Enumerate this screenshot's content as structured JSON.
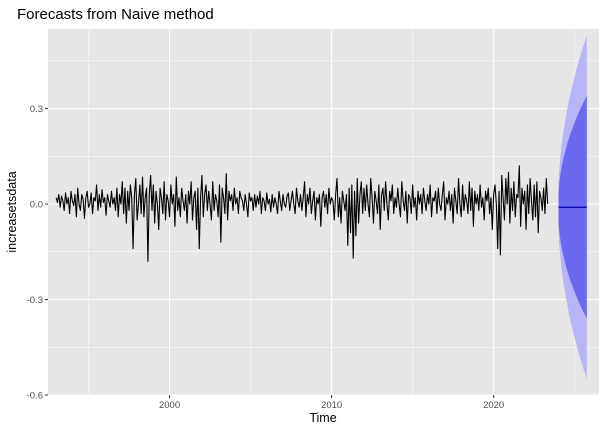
{
  "chart_data": {
    "type": "line",
    "title": "Forecasts from Naive method",
    "xlabel": "Time",
    "ylabel": "increasetsdata",
    "xlim": [
      1992.5,
      2026.5
    ],
    "ylim": [
      -0.6,
      0.55
    ],
    "x_ticks": [
      2000,
      2010,
      2020
    ],
    "x_tick_labels": [
      "2000",
      "2010",
      "2020"
    ],
    "y_ticks": [
      -0.6,
      -0.3,
      0.0,
      0.3
    ],
    "y_tick_labels": [
      "-0.6",
      "-0.3",
      "0.0",
      "0.3"
    ],
    "grid": true,
    "legend": "none",
    "colors": {
      "panel": "#e6e6e6",
      "grid_major": "#ffffff",
      "series": "#000000",
      "forecast_line": "#0000aa",
      "band_80": "#6b68f0",
      "band_95": "#b7b5f5"
    },
    "series": [
      {
        "start": 1993.0,
        "step": 0.08333,
        "values": [
          0.02,
          0.005,
          0.03,
          -0.01,
          0.025,
          0.01,
          -0.02,
          0.035,
          0.0,
          0.02,
          -0.03,
          0.04,
          0.01,
          -0.005,
          0.03,
          -0.04,
          0.05,
          0.0,
          -0.02,
          0.03,
          0.015,
          -0.045,
          0.02,
          0.04,
          -0.01,
          0.0,
          0.035,
          -0.03,
          0.02,
          0.01,
          0.06,
          -0.02,
          0.03,
          -0.01,
          0.045,
          0.005,
          0.02,
          -0.035,
          0.03,
          0.01,
          -0.01,
          0.04,
          0.0,
          0.02,
          -0.02,
          0.05,
          -0.04,
          0.03,
          0.0,
          0.07,
          -0.03,
          0.05,
          -0.06,
          0.04,
          -0.02,
          0.06,
          0.02,
          -0.14,
          0.03,
          0.08,
          -0.05,
          0.0,
          0.06,
          -0.03,
          0.085,
          -0.04,
          0.02,
          0.05,
          -0.18,
          0.03,
          0.09,
          -0.02,
          0.06,
          -0.06,
          0.04,
          0.0,
          -0.08,
          0.05,
          0.02,
          -0.03,
          0.07,
          -0.05,
          0.03,
          0.01,
          -0.04,
          0.06,
          0.0,
          0.03,
          -0.07,
          0.085,
          -0.02,
          0.02,
          -0.04,
          0.05,
          0.01,
          -0.02,
          0.03,
          -0.06,
          0.04,
          0.0,
          0.07,
          -0.05,
          0.02,
          0.04,
          -0.08,
          0.05,
          -0.14,
          0.02,
          0.09,
          -0.04,
          0.03,
          0.06,
          -0.02,
          0.04,
          0.0,
          -0.05,
          0.07,
          -0.02,
          0.03,
          0.01,
          -0.04,
          0.06,
          -0.12,
          0.05,
          0.02,
          -0.03,
          0.095,
          -0.05,
          0.04,
          0.01,
          0.03,
          -0.02,
          0.05,
          0.0,
          0.02,
          -0.03,
          0.04,
          0.02,
          0.01,
          -0.02,
          0.03,
          0.0,
          -0.04,
          0.035,
          0.01,
          0.02,
          -0.02,
          0.03,
          -0.01,
          0.025,
          0.0,
          0.04,
          -0.03,
          0.02,
          0.01,
          -0.02,
          0.035,
          0.0,
          0.015,
          -0.025,
          0.03,
          -0.01,
          0.02,
          0.0,
          -0.03,
          0.04,
          0.01,
          -0.02,
          0.03,
          0.0,
          -0.01,
          0.025,
          0.035,
          -0.02,
          0.01,
          0.04,
          0.0,
          -0.03,
          0.05,
          0.01,
          -0.01,
          0.03,
          -0.02,
          0.02,
          0.07,
          -0.04,
          0.03,
          0.0,
          0.05,
          -0.03,
          0.01,
          0.04,
          -0.05,
          0.02,
          0.0,
          0.03,
          -0.07,
          0.02,
          0.04,
          -0.01,
          0.03,
          -0.03,
          0.05,
          0.0,
          0.02,
          0.01,
          -0.05,
          0.03,
          0.08,
          -0.04,
          0.02,
          -0.06,
          0.04,
          0.01,
          -0.02,
          0.03,
          -0.13,
          0.05,
          -0.09,
          0.06,
          -0.17,
          0.04,
          -0.1,
          0.08,
          -0.06,
          0.03,
          0.07,
          -0.03,
          0.05,
          -0.02,
          0.06,
          0.0,
          -0.04,
          0.08,
          0.02,
          -0.06,
          0.04,
          0.01,
          -0.03,
          0.06,
          -0.08,
          0.03,
          0.05,
          -0.02,
          0.07,
          0.0,
          -0.05,
          0.04,
          0.01,
          0.06,
          -0.03,
          0.02,
          -0.01,
          0.05,
          0.0,
          -0.04,
          0.07,
          0.01,
          -0.02,
          0.04,
          -0.06,
          0.03,
          0.02,
          -0.03,
          0.06,
          -0.01,
          0.02,
          -0.05,
          0.04,
          0.0,
          0.03,
          -0.03,
          0.05,
          0.01,
          -0.02,
          0.03,
          0.0,
          0.06,
          -0.04,
          0.02,
          0.01,
          0.04,
          -0.03,
          0.05,
          0.0,
          -0.02,
          0.03,
          0.07,
          -0.05,
          0.02,
          0.0,
          0.04,
          -0.02,
          0.03,
          -0.06,
          0.05,
          0.01,
          -0.03,
          0.08,
          0.0,
          -0.04,
          0.06,
          -0.02,
          0.03,
          0.01,
          -0.03,
          0.07,
          -0.02,
          0.05,
          -0.07,
          0.04,
          0.0,
          0.03,
          -0.02,
          0.06,
          -0.01,
          0.02,
          -0.05,
          0.04,
          0.01,
          0.05,
          -0.03,
          0.02,
          -0.08,
          0.03,
          0.06,
          0.0,
          -0.14,
          0.04,
          -0.16,
          0.09,
          0.02,
          -0.05,
          0.08,
          0.0,
          0.1,
          -0.06,
          0.05,
          -0.02,
          0.07,
          -0.04,
          0.03,
          0.02,
          0.12,
          -0.07,
          0.05,
          0.0,
          0.04,
          -0.08,
          0.06,
          -0.03,
          0.08,
          0.01,
          -0.05,
          0.06,
          -0.04,
          0.07,
          -0.09,
          0.04,
          0.02,
          -0.02,
          0.05,
          -0.03,
          0.08,
          0.0
        ]
      }
    ],
    "forecast": {
      "start": 2024.0,
      "end": 2025.75,
      "point": -0.01,
      "band_80": {
        "lower_end": -0.36,
        "upper_end": 0.34
      },
      "band_95": {
        "lower_end": -0.55,
        "upper_end": 0.53
      }
    }
  }
}
